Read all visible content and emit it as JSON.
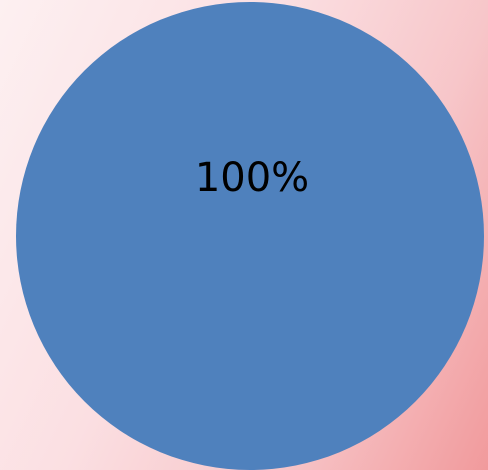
{
  "chart_data": {
    "type": "pie",
    "values": [
      100
    ],
    "value_labels": [
      "100%"
    ],
    "colors": [
      "#4f81bd"
    ]
  }
}
